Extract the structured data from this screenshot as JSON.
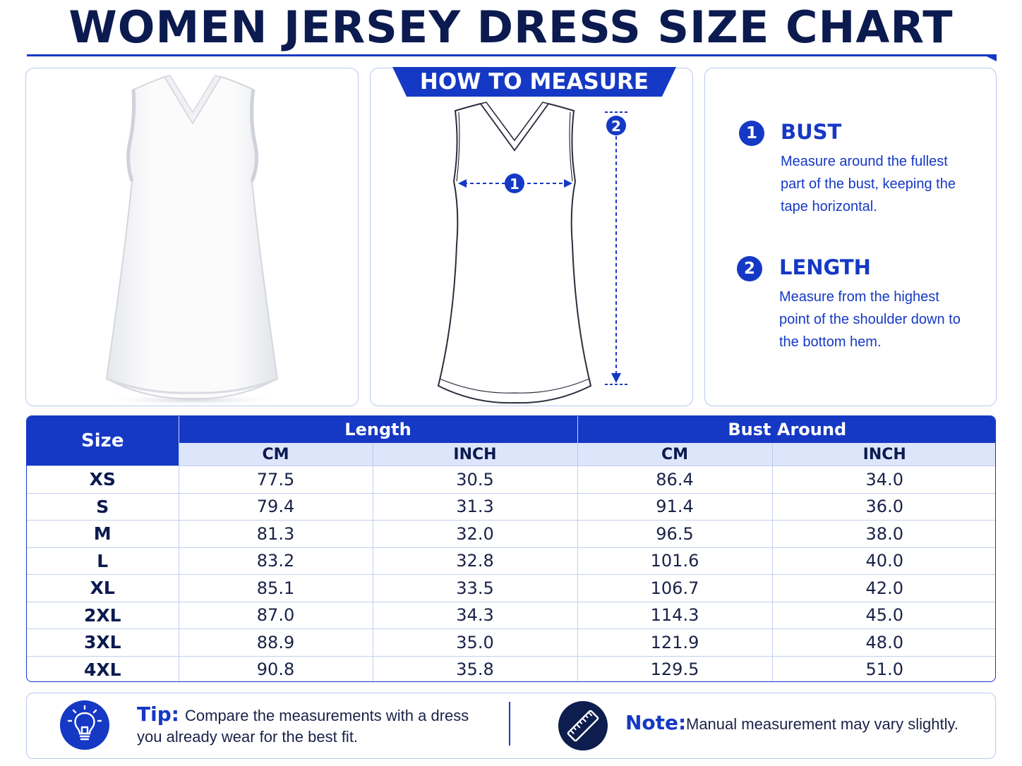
{
  "title": "WOMEN JERSEY DRESS SIZE CHART",
  "how_to_measure": {
    "banner": "HOW TO MEASURE",
    "marker_1": "1",
    "marker_2": "2"
  },
  "legend": [
    {
      "num": "1",
      "title": "BUST",
      "text": "Measure around the fullest part of the bust, keeping the tape horizontal."
    },
    {
      "num": "2",
      "title": "LENGTH",
      "text": "Measure from the highest point of the shoulder down to the bottom hem."
    }
  ],
  "table": {
    "size_header": "Size",
    "length_header": "Length",
    "bust_header": "Bust Around",
    "sub_cm": "CM",
    "sub_inch": "INCH",
    "rows": [
      {
        "size": "XS",
        "length_cm": "77.5",
        "length_inch": "30.5",
        "bust_cm": "86.4",
        "bust_inch": "34.0"
      },
      {
        "size": "S",
        "length_cm": "79.4",
        "length_inch": "31.3",
        "bust_cm": "91.4",
        "bust_inch": "36.0"
      },
      {
        "size": "M",
        "length_cm": "81.3",
        "length_inch": "32.0",
        "bust_cm": "96.5",
        "bust_inch": "38.0"
      },
      {
        "size": "L",
        "length_cm": "83.2",
        "length_inch": "32.8",
        "bust_cm": "101.6",
        "bust_inch": "40.0"
      },
      {
        "size": "XL",
        "length_cm": "85.1",
        "length_inch": "33.5",
        "bust_cm": "106.7",
        "bust_inch": "42.0"
      },
      {
        "size": "2XL",
        "length_cm": "87.0",
        "length_inch": "34.3",
        "bust_cm": "114.3",
        "bust_inch": "45.0"
      },
      {
        "size": "3XL",
        "length_cm": "88.9",
        "length_inch": "35.0",
        "bust_cm": "121.9",
        "bust_inch": "48.0"
      },
      {
        "size": "4XL",
        "length_cm": "90.8",
        "length_inch": "35.8",
        "bust_cm": "129.5",
        "bust_inch": "51.0"
      }
    ]
  },
  "tip": {
    "label": "Tip:",
    "line1": "Compare the measurements with a dress",
    "line2": "you already wear for the best fit.",
    "icon": "lightbulb-icon"
  },
  "note": {
    "label": "Note:",
    "text": "Manual measurement may vary slightly.",
    "icon": "ruler-icon"
  },
  "colors": {
    "accent": "#1539c4",
    "title": "#0b1a4f",
    "subheader_bg": "#dde5fb",
    "border": "#b9c8f0"
  }
}
